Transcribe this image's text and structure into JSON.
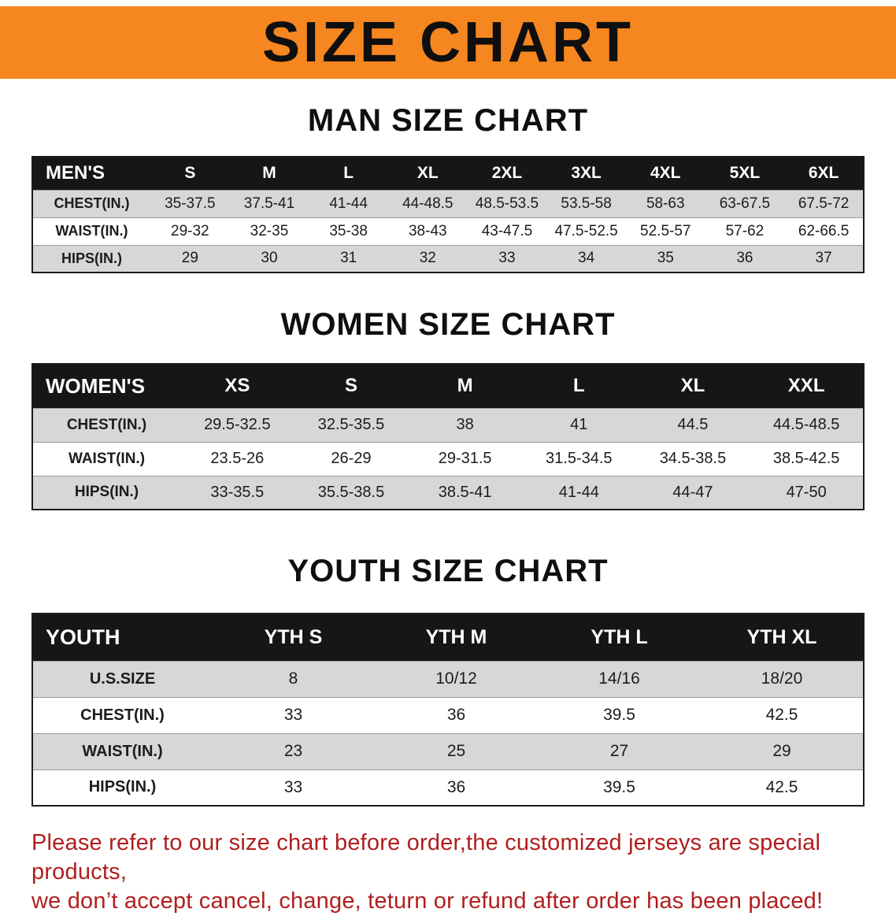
{
  "banner": {
    "title": "SIZE CHART"
  },
  "sections": [
    {
      "heading": "MAN SIZE CHART",
      "table": {
        "header": [
          "MEN'S",
          "S",
          "M",
          "L",
          "XL",
          "2XL",
          "3XL",
          "4XL",
          "5XL",
          "6XL"
        ],
        "rows": [
          [
            "CHEST(IN.)",
            "35-37.5",
            "37.5-41",
            "41-44",
            "44-48.5",
            "48.5-53.5",
            "53.5-58",
            "58-63",
            "63-67.5",
            "67.5-72"
          ],
          [
            "WAIST(IN.)",
            "29-32",
            "32-35",
            "35-38",
            "38-43",
            "43-47.5",
            "47.5-52.5",
            "52.5-57",
            "57-62",
            "62-66.5"
          ],
          [
            "HIPS(IN.)",
            "29",
            "30",
            "31",
            "32",
            "33",
            "34",
            "35",
            "36",
            "37"
          ]
        ]
      }
    },
    {
      "heading": "WOMEN SIZE CHART",
      "table": {
        "header": [
          "WOMEN'S",
          "XS",
          "S",
          "M",
          "L",
          "XL",
          "XXL"
        ],
        "rows": [
          [
            "CHEST(IN.)",
            "29.5-32.5",
            "32.5-35.5",
            "38",
            "41",
            "44.5",
            "44.5-48.5"
          ],
          [
            "WAIST(IN.)",
            "23.5-26",
            "26-29",
            "29-31.5",
            "31.5-34.5",
            "34.5-38.5",
            "38.5-42.5"
          ],
          [
            "HIPS(IN.)",
            "33-35.5",
            "35.5-38.5",
            "38.5-41",
            "41-44",
            "44-47",
            "47-50"
          ]
        ]
      }
    },
    {
      "heading": "YOUTH SIZE CHART",
      "table": {
        "header": [
          "YOUTH",
          "YTH S",
          "YTH M",
          "YTH L",
          "YTH XL"
        ],
        "rows": [
          [
            "U.S.SIZE",
            "8",
            "10/12",
            "14/16",
            "18/20"
          ],
          [
            "CHEST(IN.)",
            "33",
            "36",
            "39.5",
            "42.5"
          ],
          [
            "WAIST(IN.)",
            "23",
            "25",
            "27",
            "29"
          ],
          [
            "HIPS(IN.)",
            "33",
            "36",
            "39.5",
            "42.5"
          ]
        ]
      }
    }
  ],
  "disclaimer": {
    "line1": "Please refer to our size chart before order,the customized jerseys are special products,",
    "line2": "we don’t accept cancel, change, teturn or refund after order has been placed!"
  },
  "colors": {
    "banner_bg": "#F6861F",
    "table_header_bg": "#161616",
    "row_stripe": "#D7D7D7",
    "disclaimer_text": "#B01E1E"
  }
}
